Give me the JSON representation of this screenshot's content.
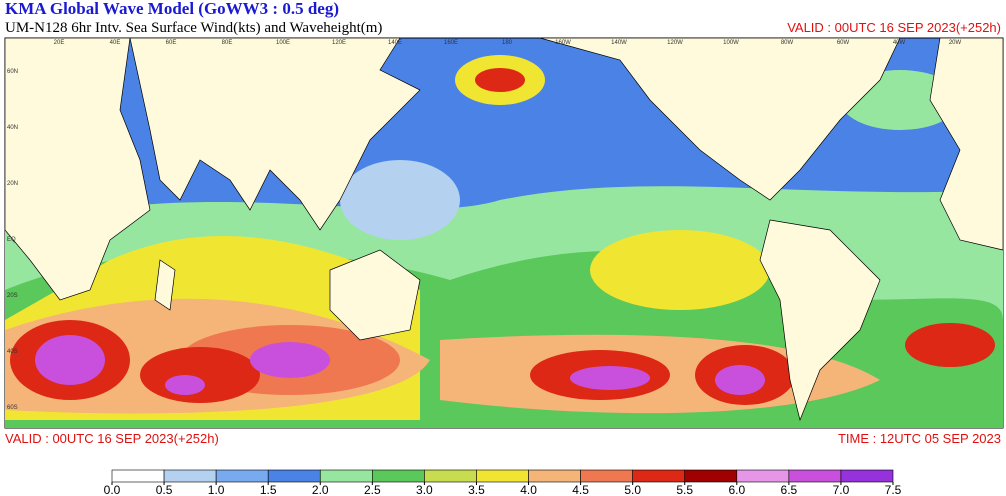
{
  "header": {
    "title": "KMA  Global Wave Model (GoWW3 : 0.5 deg)",
    "subtitle": "UM-N128  6hr Intv. Sea Surface Wind(kts) and Waveheight(m)",
    "valid_top": "VALID : 00UTC 16 SEP 2023(+252h)"
  },
  "footer": {
    "valid": "VALID : 00UTC 16 SEP 2023(+252h)",
    "time": "TIME : 12UTC 05 SEP 2023"
  },
  "map": {
    "lon_labels": [
      "20E",
      "40E",
      "60E",
      "80E",
      "100E",
      "120E",
      "140E",
      "160E",
      "180",
      "160W",
      "140W",
      "120W",
      "100W",
      "80W",
      "60W",
      "40W",
      "20W"
    ],
    "lat_labels": [
      "60N",
      "40N",
      "20N",
      "EQ",
      "20S",
      "40S",
      "60S"
    ]
  },
  "colorbar": {
    "levels": [
      {
        "value": 0,
        "label": "0.0"
      },
      {
        "value": 0.5,
        "label": "0.5"
      },
      {
        "value": 1,
        "label": "1.0"
      },
      {
        "value": 1.5,
        "label": "1.5"
      },
      {
        "value": 2,
        "label": "2.0"
      },
      {
        "value": 2.5,
        "label": "2.5"
      },
      {
        "value": 3,
        "label": "3.0"
      },
      {
        "value": 3.5,
        "label": "3.5"
      },
      {
        "value": 4,
        "label": "4.0"
      },
      {
        "value": 4.5,
        "label": "4.5"
      },
      {
        "value": 5,
        "label": "5.0"
      },
      {
        "value": 5.5,
        "label": "5.5"
      },
      {
        "value": 6,
        "label": "6.0"
      },
      {
        "value": 6.5,
        "label": "6.5"
      },
      {
        "value": 7,
        "label": "7.0"
      },
      {
        "value": 7.5,
        "label": "7.5"
      }
    ],
    "colors": [
      "#ffffff",
      "#b4d2f0",
      "#78aaf0",
      "#4b82e6",
      "#96e6a0",
      "#5ac85a",
      "#c8dc50",
      "#f0e632",
      "#f5b478",
      "#f07850",
      "#dc2814",
      "#a00000",
      "#e696e6",
      "#c850dc",
      "#9632dc"
    ]
  }
}
